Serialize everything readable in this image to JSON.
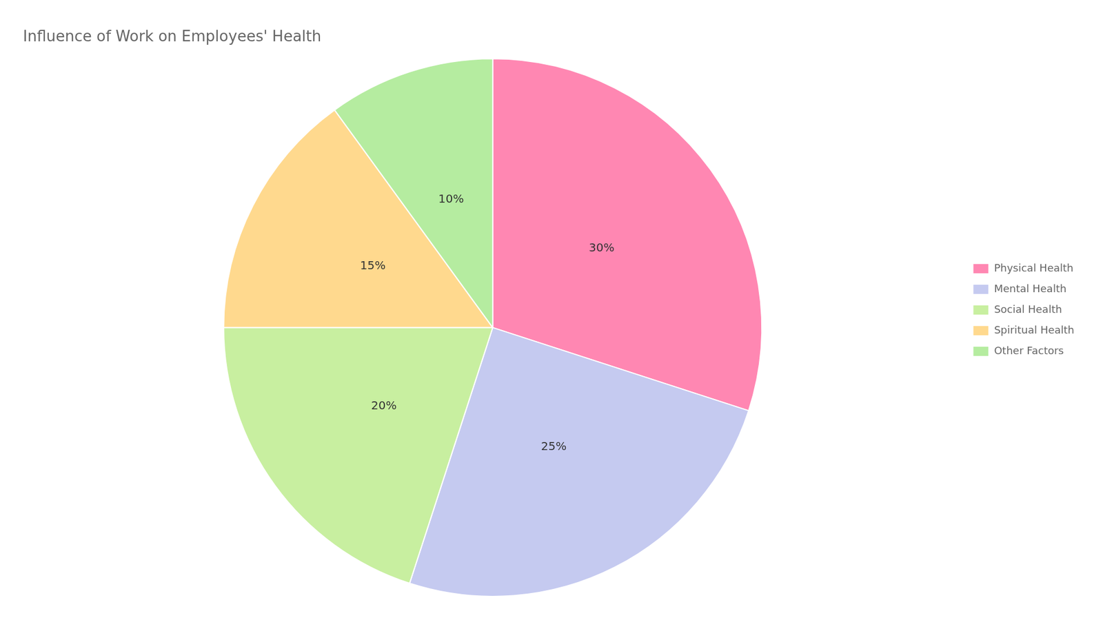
{
  "chart_data": {
    "type": "pie",
    "title": "Influence of Work on Employees' Health",
    "categories": [
      "Physical Health",
      "Mental Health",
      "Social Health",
      "Spiritual Health",
      "Other Factors"
    ],
    "values": [
      30,
      25,
      20,
      15,
      10
    ],
    "value_labels": [
      "30%",
      "25%",
      "20%",
      "15%",
      "10%"
    ],
    "colors": [
      "#FF87B2",
      "#C5CAF0",
      "#C8EFA0",
      "#FFD98E",
      "#B5ECA0"
    ],
    "data_labels": true,
    "legend": "right"
  }
}
